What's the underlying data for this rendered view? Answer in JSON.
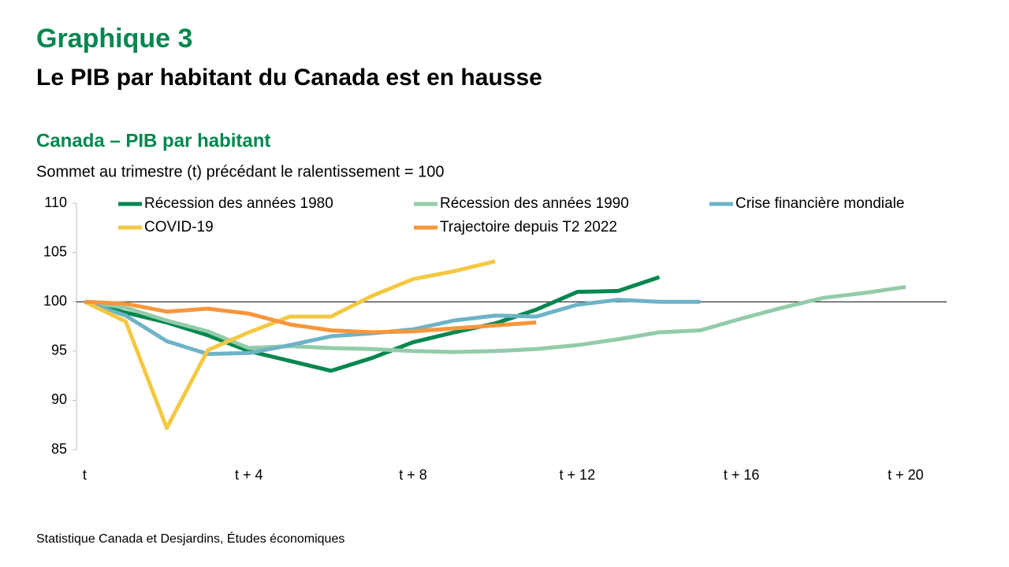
{
  "chart_data": {
    "type": "line",
    "title": "Graphique 3",
    "subtitle": "Le PIB par habitant du Canada est en hausse",
    "chart_title": "Canada – PIB par habitant",
    "y_label": "Sommet au trimestre (t) précédant le ralentissement = 100",
    "source": "Statistique Canada et Desjardins, Études économiques",
    "x": [
      0,
      1,
      2,
      3,
      4,
      5,
      6,
      7,
      8,
      9,
      10,
      11,
      12,
      13,
      14,
      15,
      16,
      17,
      18,
      19,
      20
    ],
    "xlim": [
      -0.2,
      21
    ],
    "xticks": [
      {
        "value": 0,
        "label": "t"
      },
      {
        "value": 4,
        "label": "t + 4"
      },
      {
        "value": 8,
        "label": "t + 8"
      },
      {
        "value": 12,
        "label": "t + 12"
      },
      {
        "value": 16,
        "label": "t + 16"
      },
      {
        "value": 20,
        "label": "t + 20"
      }
    ],
    "ylim": [
      85,
      110
    ],
    "yticks": [
      85,
      90,
      95,
      100,
      105,
      110
    ],
    "reference_line": 100,
    "grid": false,
    "legend": "top",
    "series": [
      {
        "name": "Récession des années 1980",
        "color": "#00874e",
        "values": [
          100,
          98.9,
          97.9,
          96.6,
          95.0,
          94.0,
          93.0,
          94.3,
          95.9,
          96.9,
          97.8,
          99.2,
          101.0,
          101.1,
          102.5,
          null,
          null,
          null,
          null,
          null,
          null
        ]
      },
      {
        "name": "Récession des années 1990",
        "color": "#93cba9",
        "values": [
          100,
          99.4,
          98.1,
          97.0,
          95.3,
          95.5,
          95.3,
          95.2,
          95.0,
          94.9,
          95.0,
          95.2,
          95.6,
          96.2,
          96.9,
          97.1,
          98.3,
          99.4,
          100.4,
          100.9,
          101.5
        ]
      },
      {
        "name": "Crise financière mondiale",
        "color": "#6db3c6",
        "values": [
          100,
          98.6,
          96.0,
          94.7,
          94.8,
          95.6,
          96.5,
          96.8,
          97.2,
          98.1,
          98.6,
          98.5,
          99.7,
          100.2,
          100.0,
          100.0,
          null,
          null,
          null,
          null,
          null
        ]
      },
      {
        "name": "COVID-19",
        "color": "#f4c842",
        "values": [
          100,
          98.0,
          87.2,
          95.1,
          96.9,
          98.5,
          98.5,
          100.6,
          102.3,
          103.1,
          104.1,
          null,
          null,
          null,
          null,
          null,
          null,
          null,
          null,
          null,
          null
        ]
      },
      {
        "name": "Trajectoire depuis T2 2022",
        "color": "#f7963a",
        "values": [
          100,
          99.8,
          99.0,
          99.3,
          98.8,
          97.7,
          97.1,
          96.9,
          97.0,
          97.3,
          97.6,
          97.9,
          null,
          null,
          null,
          null,
          null,
          null,
          null,
          null,
          null
        ]
      }
    ]
  }
}
